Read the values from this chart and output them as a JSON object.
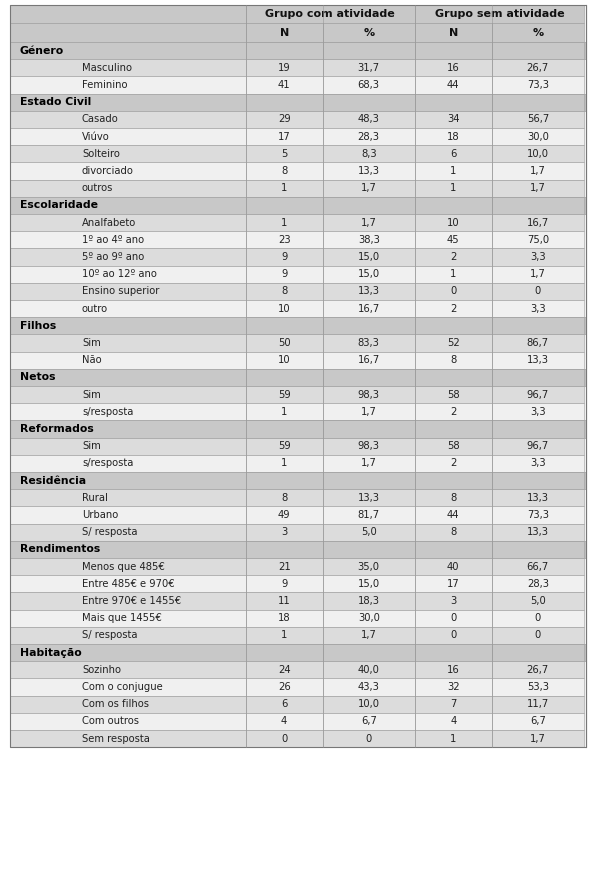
{
  "col_headers_row1_left": "Grupo com atividade",
  "col_headers_row1_right": "Grupo sem atividade",
  "col_headers_row2": [
    "N",
    "%",
    "N",
    "%"
  ],
  "rows": [
    {
      "type": "section",
      "label": "Género"
    },
    {
      "type": "data",
      "label": "Masculino",
      "vals": [
        "19",
        "31,7",
        "16",
        "26,7"
      ]
    },
    {
      "type": "data",
      "label": "Feminino",
      "vals": [
        "41",
        "68,3",
        "44",
        "73,3"
      ]
    },
    {
      "type": "section",
      "label": "Estado Civil"
    },
    {
      "type": "data",
      "label": "Casado",
      "vals": [
        "29",
        "48,3",
        "34",
        "56,7"
      ]
    },
    {
      "type": "data",
      "label": "Viúvo",
      "vals": [
        "17",
        "28,3",
        "18",
        "30,0"
      ]
    },
    {
      "type": "data",
      "label": "Solteiro",
      "vals": [
        "5",
        "8,3",
        "6",
        "10,0"
      ]
    },
    {
      "type": "data",
      "label": "divorciado",
      "vals": [
        "8",
        "13,3",
        "1",
        "1,7"
      ]
    },
    {
      "type": "data",
      "label": "outros",
      "vals": [
        "1",
        "1,7",
        "1",
        "1,7"
      ]
    },
    {
      "type": "section",
      "label": "Escolaridade"
    },
    {
      "type": "data",
      "label": "Analfabeto",
      "vals": [
        "1",
        "1,7",
        "10",
        "16,7"
      ]
    },
    {
      "type": "data",
      "label": "1º ao 4º ano",
      "vals": [
        "23",
        "38,3",
        "45",
        "75,0"
      ]
    },
    {
      "type": "data",
      "label": "5º ao 9º ano",
      "vals": [
        "9",
        "15,0",
        "2",
        "3,3"
      ]
    },
    {
      "type": "data",
      "label": "10º ao 12º ano",
      "vals": [
        "9",
        "15,0",
        "1",
        "1,7"
      ]
    },
    {
      "type": "data",
      "label": "Ensino superior",
      "vals": [
        "8",
        "13,3",
        "0",
        "0"
      ]
    },
    {
      "type": "data",
      "label": "outro",
      "vals": [
        "10",
        "16,7",
        "2",
        "3,3"
      ]
    },
    {
      "type": "section",
      "label": "Filhos"
    },
    {
      "type": "data",
      "label": "Sim",
      "vals": [
        "50",
        "83,3",
        "52",
        "86,7"
      ]
    },
    {
      "type": "data",
      "label": "Não",
      "vals": [
        "10",
        "16,7",
        "8",
        "13,3"
      ]
    },
    {
      "type": "section",
      "label": "Netos"
    },
    {
      "type": "data",
      "label": "Sim",
      "vals": [
        "59",
        "98,3",
        "58",
        "96,7"
      ]
    },
    {
      "type": "data",
      "label": "s/resposta",
      "vals": [
        "1",
        "1,7",
        "2",
        "3,3"
      ]
    },
    {
      "type": "section",
      "label": "Reformados"
    },
    {
      "type": "data",
      "label": "Sim",
      "vals": [
        "59",
        "98,3",
        "58",
        "96,7"
      ]
    },
    {
      "type": "data",
      "label": "s/resposta",
      "vals": [
        "1",
        "1,7",
        "2",
        "3,3"
      ]
    },
    {
      "type": "section",
      "label": "Residência"
    },
    {
      "type": "data",
      "label": "Rural",
      "vals": [
        "8",
        "13,3",
        "8",
        "13,3"
      ]
    },
    {
      "type": "data",
      "label": "Urbano",
      "vals": [
        "49",
        "81,7",
        "44",
        "73,3"
      ]
    },
    {
      "type": "data",
      "label": "S/ resposta",
      "vals": [
        "3",
        "5,0",
        "8",
        "13,3"
      ]
    },
    {
      "type": "section",
      "label": "Rendimentos"
    },
    {
      "type": "data",
      "label": "Menos que 485€",
      "vals": [
        "21",
        "35,0",
        "40",
        "66,7"
      ]
    },
    {
      "type": "data",
      "label": "Entre 485€ e 970€",
      "vals": [
        "9",
        "15,0",
        "17",
        "28,3"
      ]
    },
    {
      "type": "data",
      "label": "Entre 970€ e 1455€",
      "vals": [
        "11",
        "18,3",
        "3",
        "5,0"
      ]
    },
    {
      "type": "data",
      "label": "Mais que 1455€",
      "vals": [
        "18",
        "30,0",
        "0",
        "0"
      ]
    },
    {
      "type": "data",
      "label": "S/ resposta",
      "vals": [
        "1",
        "1,7",
        "0",
        "0"
      ]
    },
    {
      "type": "section",
      "label": "Habitação"
    },
    {
      "type": "data",
      "label": "Sozinho",
      "vals": [
        "24",
        "40,0",
        "16",
        "26,7"
      ]
    },
    {
      "type": "data",
      "label": "Com o conjugue",
      "vals": [
        "26",
        "43,3",
        "32",
        "53,3"
      ]
    },
    {
      "type": "data",
      "label": "Com os filhos",
      "vals": [
        "6",
        "10,0",
        "7",
        "11,7"
      ]
    },
    {
      "type": "data",
      "label": "Com outros",
      "vals": [
        "4",
        "6,7",
        "4",
        "6,7"
      ]
    },
    {
      "type": "data",
      "label": "Sem resposta",
      "vals": [
        "0",
        "0",
        "1",
        "1,7"
      ]
    }
  ],
  "bg_color": "#ffffff",
  "section_bg": "#c8c8c8",
  "data_odd_bg": "#dcdcdc",
  "data_even_bg": "#f0f0f0",
  "header_bg": "#c8c8c8",
  "border_color": "#999999"
}
